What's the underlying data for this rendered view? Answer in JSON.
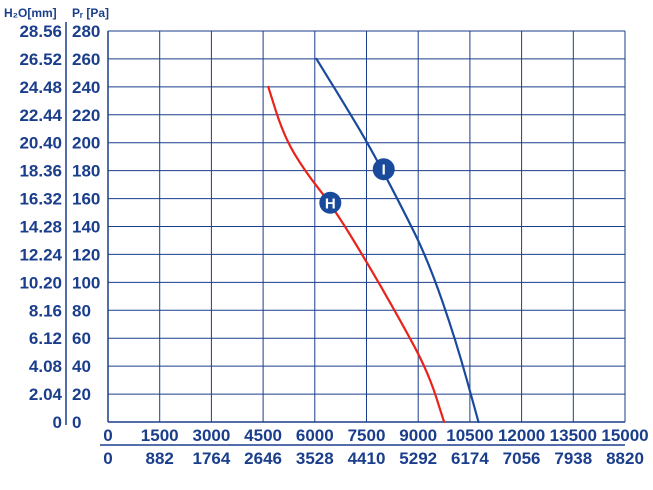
{
  "chart_data": {
    "type": "line",
    "left_axis_title": "H₂O[mm]",
    "pa_axis_title": "Pᵣ [Pa]",
    "y_pa_ticks": [
      "280",
      "260",
      "240",
      "220",
      "200",
      "180",
      "160",
      "140",
      "120",
      "100",
      "80",
      "60",
      "40",
      "20",
      "0"
    ],
    "y_mm_ticks": [
      "28.56",
      "26.52",
      "24.48",
      "22.44",
      "20.40",
      "18.36",
      "16.32",
      "14.28",
      "12.24",
      "10.20",
      "8.16",
      "6.12",
      "4.08",
      "2.04",
      "0"
    ],
    "x_ticks_top": [
      "0",
      "1500",
      "3000",
      "4500",
      "6000",
      "7500",
      "9000",
      "10500",
      "12000",
      "13500",
      "15000"
    ],
    "x_ticks_bottom": [
      "0",
      "882",
      "1764",
      "2646",
      "3528",
      "4410",
      "5292",
      "6174",
      "7056",
      "7938",
      "8820"
    ],
    "xlim": [
      0,
      15000
    ],
    "ylim": [
      0,
      280
    ],
    "grid": true,
    "series": [
      {
        "name": "H",
        "color": "#e8231b",
        "x": [
          4650,
          5100,
          5700,
          6500,
          7500,
          8500,
          9300,
          9750
        ],
        "y": [
          240,
          205,
          180,
          155,
          115,
          72,
          35,
          0
        ],
        "marker": {
          "x": 6450,
          "y": 157
        }
      },
      {
        "name": "I",
        "color": "#1a4a9c",
        "x": [
          6050,
          6800,
          7600,
          8500,
          9300,
          10100,
          10750
        ],
        "y": [
          260,
          230,
          197,
          155,
          115,
          58,
          0
        ],
        "marker": {
          "x": 8000,
          "y": 181
        }
      }
    ],
    "colors": {
      "grid": "#1a3e8c",
      "text": "#1a3e8c",
      "badge": "#1a4a9c"
    }
  }
}
